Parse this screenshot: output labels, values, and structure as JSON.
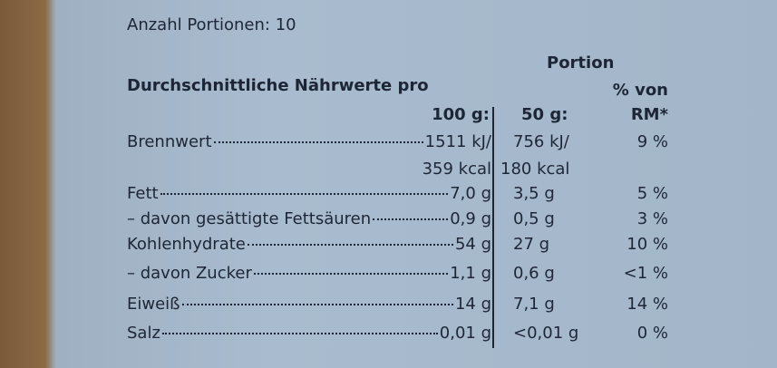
{
  "header": {
    "servings": "Anzahl Portionen: 10",
    "portion": "Portion",
    "title": "Durchschnittliche Nährwerte pro",
    "ri_head": "% von",
    "col_100g": "100 g:",
    "col_portion": "50 g:",
    "col_ri": "RM*"
  },
  "table": {
    "rows": [
      {
        "label": "Brennwert",
        "per_100g": [
          "1511 kJ/",
          "359 kcal"
        ],
        "per_portion": [
          "756 kJ/",
          "180 kcal"
        ],
        "ri": "9 %"
      },
      {
        "label": "Fett",
        "per_100g": "7,0 g",
        "per_portion": "3,5 g",
        "ri": "5 %"
      },
      {
        "label": "– davon gesättigte Fettsäuren",
        "per_100g": "0,9 g",
        "per_portion": "0,5 g",
        "ri": "3 %"
      },
      {
        "label": "Kohlenhydrate",
        "per_100g": "54 g",
        "per_portion": "27 g",
        "ri": "10 %"
      },
      {
        "label": "– davon Zucker",
        "per_100g": "1,1 g",
        "per_portion": "0,6 g",
        "ri": "<1 %"
      },
      {
        "label": "Eiweiß",
        "per_100g": "14 g",
        "per_portion": "7,1 g",
        "ri": "14 %"
      },
      {
        "label": "Salz",
        "per_100g": "0,01 g",
        "per_portion": "<0,01 g",
        "ri": "0 %"
      }
    ]
  }
}
